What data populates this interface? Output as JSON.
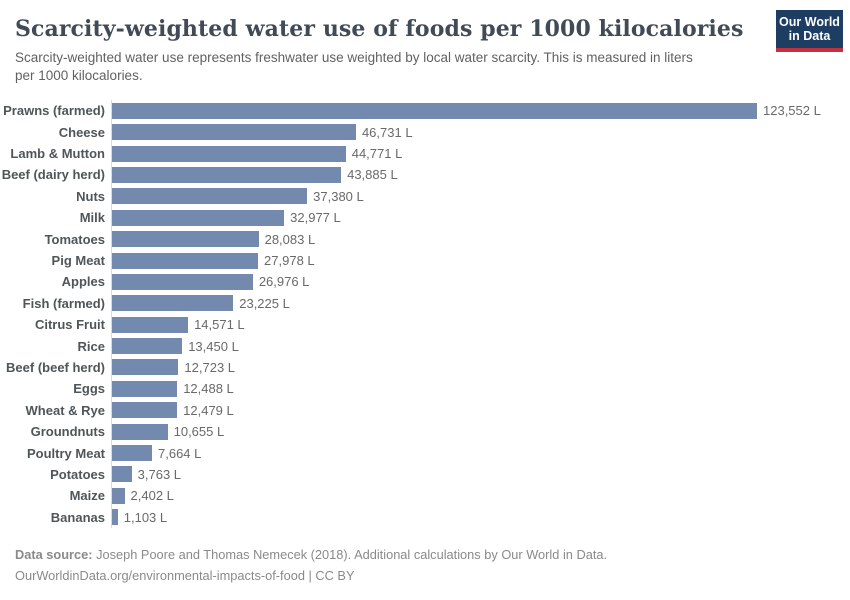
{
  "header": {
    "title": "Scarcity-weighted water use of foods per 1000 kilocalories",
    "subtitle": "Scarcity-weighted water use represents freshwater use weighted by local water scarcity. This is measured in liters per 1000 kilocalories.",
    "logo": {
      "line1": "Our World",
      "line2": "in Data"
    }
  },
  "chart_data": {
    "type": "bar",
    "orientation": "horizontal",
    "title": "Scarcity-weighted water use of foods per 1000 kilocalories",
    "unit": "liters per 1000 kilocalories",
    "categories": [
      "Prawns (farmed)",
      "Cheese",
      "Lamb & Mutton",
      "Beef (dairy herd)",
      "Nuts",
      "Milk",
      "Tomatoes",
      "Pig Meat",
      "Apples",
      "Fish (farmed)",
      "Citrus Fruit",
      "Rice",
      "Beef (beef herd)",
      "Eggs",
      "Wheat & Rye",
      "Groundnuts",
      "Poultry Meat",
      "Potatoes",
      "Maize",
      "Bananas"
    ],
    "values": [
      123552,
      46731,
      44771,
      43885,
      37380,
      32977,
      28083,
      27978,
      26976,
      23225,
      14571,
      13450,
      12723,
      12488,
      12479,
      10655,
      7664,
      3763,
      2402,
      1103
    ],
    "value_labels": [
      "123,552 L",
      "46,731 L",
      "44,771 L",
      "43,885 L",
      "37,380 L",
      "32,977 L",
      "28,083 L",
      "27,978 L",
      "26,976 L",
      "23,225 L",
      "14,571 L",
      "13,450 L",
      "12,723 L",
      "12,488 L",
      "12,479 L",
      "10,655 L",
      "7,664 L",
      "3,763 L",
      "2,402 L",
      "1,103 L"
    ],
    "xlim": [
      0,
      123552
    ],
    "grid": false,
    "legend": "none",
    "bar_color": "#7389ae",
    "axis_color": "#dadada"
  },
  "footer": {
    "source_label": "Data source:",
    "source_text": " Joseph Poore and Thomas Nemecek (2018). Additional calculations by Our World in Data.",
    "citation": "OurWorldinData.org/environmental-impacts-of-food | CC BY"
  }
}
